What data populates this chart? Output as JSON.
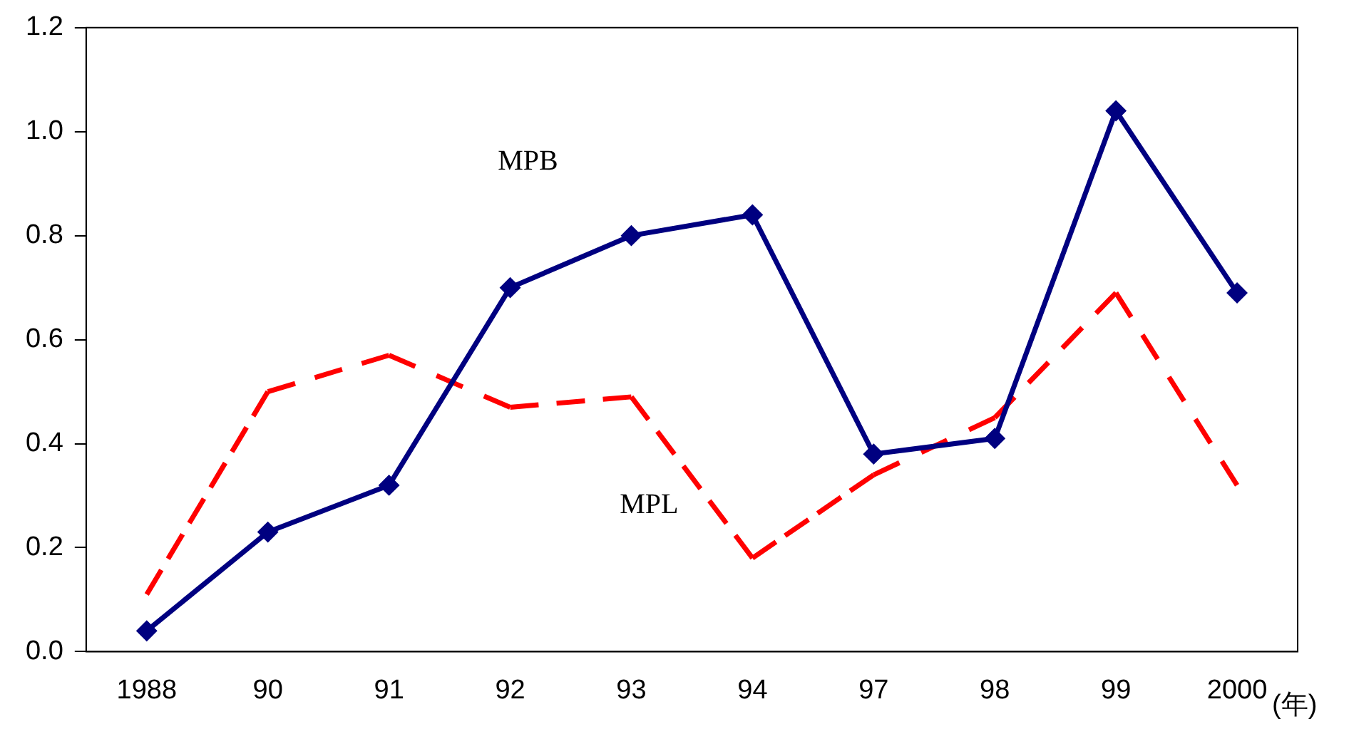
{
  "chart_data": {
    "type": "line",
    "xlabel": "(年)",
    "categories": [
      "1988",
      "90",
      "91",
      "92",
      "93",
      "94",
      "97",
      "98",
      "99",
      "2000"
    ],
    "series": [
      {
        "name": "MPB",
        "color": "#000080",
        "marker": "diamond",
        "line_style": "solid",
        "values": [
          0.04,
          0.23,
          0.32,
          0.7,
          0.8,
          0.84,
          0.38,
          0.41,
          1.04,
          0.69
        ]
      },
      {
        "name": "MPL",
        "color": "#ff0000",
        "marker": "none",
        "line_style": "dashed",
        "values": [
          0.11,
          0.5,
          0.57,
          0.47,
          0.49,
          0.18,
          0.34,
          0.45,
          0.69,
          0.32
        ]
      }
    ],
    "ylim": [
      0,
      1.2
    ],
    "yticks": [
      {
        "value": 0,
        "label": "0.0"
      },
      {
        "value": 0.2,
        "label": "0.2"
      },
      {
        "value": 0.4,
        "label": "0.4"
      },
      {
        "value": 0.6,
        "label": "0.6"
      },
      {
        "value": 0.8,
        "label": "0.8"
      },
      {
        "value": 1,
        "label": "1.0"
      },
      {
        "value": 1.2,
        "label": "1.2"
      }
    ],
    "grid": false,
    "legend": false
  }
}
